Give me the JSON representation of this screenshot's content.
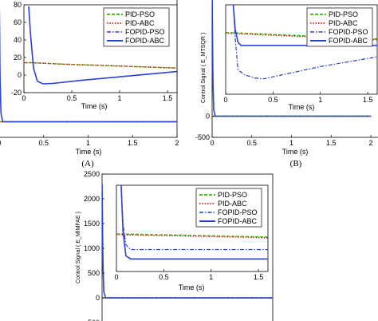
{
  "colors": {
    "PID-PSO": "#39b200",
    "PID-ABC": "#d22020",
    "FOPID-PSO": "#2a3fbf",
    "FOPID-ABC": "#2b43d8",
    "axes": "#000000",
    "frame": "#7f7f7f"
  },
  "legend_labels": [
    "PID-PSO",
    "PID-ABC",
    "FOPID-PSO",
    "FOPID-ABC"
  ],
  "captions": {
    "a": "(A)",
    "b": "(B)"
  },
  "chart_data": [
    {
      "id": "A-main",
      "type": "line",
      "xlabel": "Time (s)",
      "x_ticks": [
        "0",
        "0.5",
        "1",
        "1.5",
        "2"
      ],
      "xlim": [
        0,
        2
      ],
      "series": [
        {
          "name": "PID-PSO",
          "x": [
            0,
            2
          ],
          "y": [
            0,
            0
          ]
        },
        {
          "name": "PID-ABC",
          "x": [
            0,
            2
          ],
          "y": [
            0,
            0
          ]
        },
        {
          "name": "FOPID-PSO",
          "x": [
            0,
            0.003,
            0.01,
            0.02,
            0.04,
            2
          ],
          "y": [
            2500,
            2000,
            800,
            150,
            0,
            0
          ]
        },
        {
          "name": "FOPID-ABC",
          "x": [
            0,
            0.003,
            0.01,
            0.02,
            0.04,
            2
          ],
          "y": [
            2500,
            2000,
            800,
            150,
            0,
            0
          ]
        }
      ]
    },
    {
      "id": "A-inset",
      "type": "line",
      "xlabel": "Time (s)",
      "x_ticks": [
        "0",
        "0.5",
        "1",
        "1.5"
      ],
      "y_ticks": [
        "80",
        "60",
        "40",
        "20",
        "0",
        "-20"
      ],
      "xlim": [
        0,
        1.6
      ],
      "ylim": [
        -20,
        80
      ],
      "series": [
        {
          "name": "PID-PSO",
          "x": [
            0,
            0.1,
            0.4,
            0.8,
            1.2,
            1.6
          ],
          "y": [
            14,
            14,
            12.5,
            11,
            9.5,
            8
          ]
        },
        {
          "name": "PID-ABC",
          "x": [
            0,
            0.1,
            0.4,
            0.8,
            1.2,
            1.6
          ],
          "y": [
            14,
            14,
            12.5,
            11,
            9.5,
            8
          ]
        },
        {
          "name": "FOPID-PSO",
          "x": [
            0.05,
            0.07,
            0.1,
            0.14,
            0.2,
            0.3,
            0.6,
            1.0,
            1.6
          ],
          "y": [
            78,
            45,
            8,
            -7,
            -10,
            -9.5,
            -6,
            -2,
            4
          ]
        },
        {
          "name": "FOPID-ABC",
          "x": [
            0.05,
            0.07,
            0.1,
            0.14,
            0.2,
            0.3,
            0.6,
            1.0,
            1.6
          ],
          "y": [
            78,
            45,
            8,
            -7,
            -10,
            -9.5,
            -6,
            -2,
            4
          ]
        }
      ]
    },
    {
      "id": "B-main",
      "type": "line",
      "xlabel": "Time (s)",
      "ylabel": "Control Signal ( E_MTSQR )",
      "x_ticks": [
        "0",
        "0.5",
        "1",
        "1.5",
        "2"
      ],
      "y_ticks": [
        "0",
        "-500"
      ],
      "xlim": [
        0,
        2
      ],
      "ylim": [
        -500,
        3000
      ],
      "series": [
        {
          "name": "PID-PSO",
          "x": [
            0,
            2
          ],
          "y": [
            0,
            0
          ]
        },
        {
          "name": "PID-ABC",
          "x": [
            0,
            2
          ],
          "y": [
            0,
            0
          ]
        },
        {
          "name": "FOPID-PSO",
          "x": [
            0,
            0.003,
            0.01,
            0.02,
            0.04,
            2
          ],
          "y": [
            3000,
            2200,
            900,
            150,
            0,
            0
          ]
        },
        {
          "name": "FOPID-ABC",
          "x": [
            0,
            0.003,
            0.01,
            0.02,
            0.04,
            2
          ],
          "y": [
            3000,
            2200,
            900,
            150,
            0,
            0
          ]
        }
      ]
    },
    {
      "id": "B-inset",
      "type": "line",
      "xlabel": "Time (s)",
      "x_ticks": [
        "0",
        "0.5",
        "1",
        "1.5"
      ],
      "xlim": [
        0,
        1.6
      ],
      "ylim": [
        -1,
        10
      ],
      "series": [
        {
          "name": "PID-PSO",
          "x": [
            0,
            0.4,
            0.8,
            1.2,
            1.6
          ],
          "y": [
            6.6,
            6.4,
            6.2,
            6.0,
            5.8
          ]
        },
        {
          "name": "PID-ABC",
          "x": [
            0,
            0.4,
            0.8,
            1.2,
            1.6
          ],
          "y": [
            6.5,
            6.3,
            6.1,
            5.9,
            5.7
          ]
        },
        {
          "name": "FOPID-PSO",
          "x": [
            0.08,
            0.1,
            0.13,
            0.2,
            0.3,
            0.4,
            0.6,
            1.0,
            1.6
          ],
          "y": [
            10,
            6,
            2,
            1.4,
            1.0,
            0.9,
            1.4,
            2.4,
            3.6
          ]
        },
        {
          "name": "FOPID-ABC",
          "x": [
            0.08,
            0.1,
            0.13,
            0.16,
            0.3,
            1.6
          ],
          "y": [
            10,
            7,
            5.4,
            5.0,
            5.0,
            5.0
          ]
        }
      ]
    },
    {
      "id": "C-main",
      "type": "line",
      "ylabel": "Control Signal ( E_MIMFAE )",
      "y_ticks": [
        "2500",
        "2000",
        "1500",
        "1000",
        "500",
        "0",
        "-500"
      ],
      "xlim": [
        0,
        2
      ],
      "ylim": [
        -500,
        2500
      ],
      "series": [
        {
          "name": "PID-PSO",
          "x": [
            0,
            2
          ],
          "y": [
            0,
            0
          ]
        },
        {
          "name": "PID-ABC",
          "x": [
            0,
            2
          ],
          "y": [
            0,
            0
          ]
        },
        {
          "name": "FOPID-PSO",
          "x": [
            0,
            0.003,
            0.01,
            0.02,
            0.04,
            2
          ],
          "y": [
            2300,
            1800,
            700,
            120,
            0,
            0
          ]
        },
        {
          "name": "FOPID-ABC",
          "x": [
            0,
            0.003,
            0.01,
            0.02,
            0.04,
            2
          ],
          "y": [
            2300,
            1800,
            700,
            120,
            0,
            0
          ]
        }
      ]
    },
    {
      "id": "C-inset",
      "type": "line",
      "xlabel": "Time (s)",
      "x_ticks": [
        "0",
        "0.5",
        "1",
        "1.5"
      ],
      "xlim": [
        0,
        1.6
      ],
      "ylim": [
        -1,
        10
      ],
      "series": [
        {
          "name": "PID-PSO",
          "x": [
            0,
            0.4,
            0.8,
            1.2,
            1.6
          ],
          "y": [
            3.8,
            3.7,
            3.6,
            3.5,
            3.4
          ]
        },
        {
          "name": "PID-ABC",
          "x": [
            0,
            0.4,
            0.8,
            1.2,
            1.6
          ],
          "y": [
            3.7,
            3.6,
            3.5,
            3.4,
            3.3
          ]
        },
        {
          "name": "FOPID-PSO",
          "x": [
            0.05,
            0.07,
            0.1,
            0.15,
            0.3,
            1.6
          ],
          "y": [
            10,
            5,
            2.4,
            1.8,
            1.8,
            1.8
          ]
        },
        {
          "name": "FOPID-ABC",
          "x": [
            0.05,
            0.07,
            0.1,
            0.15,
            0.3,
            1.6
          ],
          "y": [
            10,
            4,
            1.0,
            0.6,
            0.6,
            0.6
          ]
        }
      ]
    }
  ]
}
